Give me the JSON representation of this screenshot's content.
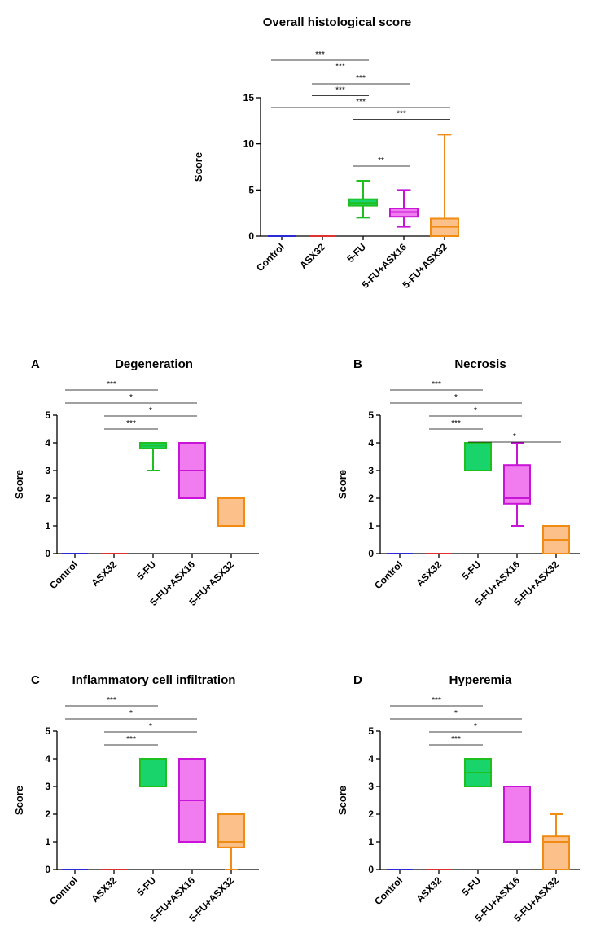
{
  "chart_data": [
    {
      "type": "box",
      "letter": "",
      "title": "Overall histological score",
      "ylabel": "Score",
      "xlabel": "",
      "ylim": [
        0,
        15
      ],
      "yticks": [
        "0",
        "5",
        "10",
        "15"
      ],
      "categories": [
        "Control",
        "ASX32",
        "5-FU",
        "5-FU+ASX16",
        "5-FU+ASX32"
      ],
      "colors": [
        "#2b2bd6",
        "#e03131",
        "#1fbf1f",
        "#c814d6",
        "#f08c14"
      ],
      "fills": [
        "#2b2bd6",
        "#e03131",
        "#19d46a",
        "#f07cf0",
        "#fcc08a"
      ],
      "boxes": [
        {
          "min": 0,
          "q1": 0,
          "median": 0,
          "q3": 0,
          "max": 0
        },
        {
          "min": 0,
          "q1": 0,
          "median": 0,
          "q3": 0,
          "max": 0
        },
        {
          "min": 2,
          "q1": 3.3,
          "median": 3.6,
          "q3": 4,
          "max": 6
        },
        {
          "min": 1,
          "q1": 2.1,
          "median": 2.6,
          "q3": 3,
          "max": 5
        },
        {
          "min": 0,
          "q1": 0,
          "median": 1,
          "q3": 1.9,
          "max": 11
        }
      ],
      "comparisons": [
        {
          "from": 0,
          "to": 2,
          "label": "***"
        },
        {
          "from": 0,
          "to": 3,
          "label": "***"
        },
        {
          "from": 1,
          "to": 3,
          "label": "***"
        },
        {
          "from": 1,
          "to": 2,
          "label": "***"
        },
        {
          "from": 0,
          "to": 4,
          "label": "***"
        },
        {
          "from": 2,
          "to": 4,
          "label": "***"
        },
        {
          "from": 2,
          "to": 3,
          "label": "**"
        }
      ]
    },
    {
      "type": "box",
      "letter": "A",
      "title": "Degeneration",
      "ylabel": "Score",
      "xlabel": "",
      "ylim": [
        0,
        5
      ],
      "yticks": [
        "0",
        "1",
        "2",
        "3",
        "4",
        "5"
      ],
      "categories": [
        "Control",
        "ASX32",
        "5-FU",
        "5-FU+ASX16",
        "5-FU+ASX32"
      ],
      "colors": [
        "#2b2bd6",
        "#e03131",
        "#1fbf1f",
        "#c814d6",
        "#f08c14"
      ],
      "fills": [
        "#2b2bd6",
        "#e03131",
        "#19d46a",
        "#f07cf0",
        "#fcc08a"
      ],
      "boxes": [
        {
          "min": 0,
          "q1": 0,
          "median": 0,
          "q3": 0,
          "max": 0
        },
        {
          "min": 0,
          "q1": 0,
          "median": 0,
          "q3": 0,
          "max": 0
        },
        {
          "min": 3,
          "q1": 3.8,
          "median": 3.9,
          "q3": 4,
          "max": 4
        },
        {
          "min": 2,
          "q1": 2,
          "median": 3,
          "q3": 4,
          "max": 4
        },
        {
          "min": 1,
          "q1": 1,
          "median": 2,
          "q3": 2,
          "max": 2
        }
      ],
      "comparisons": [
        {
          "from": 0,
          "to": 2,
          "label": "***"
        },
        {
          "from": 0,
          "to": 3,
          "label": "*"
        },
        {
          "from": 1,
          "to": 3,
          "label": "*"
        },
        {
          "from": 1,
          "to": 2,
          "label": "***"
        }
      ]
    },
    {
      "type": "box",
      "letter": "B",
      "title": "Necrosis",
      "ylabel": "Score",
      "xlabel": "",
      "ylim": [
        0,
        5
      ],
      "yticks": [
        "0",
        "1",
        "2",
        "3",
        "4",
        "5"
      ],
      "categories": [
        "Control",
        "ASX32",
        "5-FU",
        "5-FU+ASX16",
        "5-FU+ASX32"
      ],
      "colors": [
        "#2b2bd6",
        "#e03131",
        "#1fbf1f",
        "#c814d6",
        "#f08c14"
      ],
      "fills": [
        "#2b2bd6",
        "#e03131",
        "#19d46a",
        "#f07cf0",
        "#fcc08a"
      ],
      "boxes": [
        {
          "min": 0,
          "q1": 0,
          "median": 0,
          "q3": 0,
          "max": 0
        },
        {
          "min": 0,
          "q1": 0,
          "median": 0,
          "q3": 0,
          "max": 0
        },
        {
          "min": 3,
          "q1": 3,
          "median": 4,
          "q3": 4,
          "max": 4
        },
        {
          "min": 1,
          "q1": 1.8,
          "median": 2,
          "q3": 3.2,
          "max": 4
        },
        {
          "min": 0,
          "q1": 0,
          "median": 0.5,
          "q3": 1,
          "max": 1
        }
      ],
      "comparisons": [
        {
          "from": 0,
          "to": 2,
          "label": "***"
        },
        {
          "from": 0,
          "to": 3,
          "label": "*"
        },
        {
          "from": 1,
          "to": 3,
          "label": "*"
        },
        {
          "from": 1,
          "to": 2,
          "label": "***"
        },
        {
          "from": 2,
          "to": 4,
          "label": "*"
        }
      ]
    },
    {
      "type": "box",
      "letter": "C",
      "title": "Inflammatory cell infiltration",
      "ylabel": "Score",
      "xlabel": "",
      "ylim": [
        0,
        5
      ],
      "yticks": [
        "0",
        "1",
        "2",
        "3",
        "4",
        "5"
      ],
      "categories": [
        "Control",
        "ASX32",
        "5-FU",
        "5-FU+ASX16",
        "5-FU+ASX32"
      ],
      "colors": [
        "#2b2bd6",
        "#e03131",
        "#1fbf1f",
        "#c814d6",
        "#f08c14"
      ],
      "fills": [
        "#2b2bd6",
        "#e03131",
        "#19d46a",
        "#f07cf0",
        "#fcc08a"
      ],
      "boxes": [
        {
          "min": 0,
          "q1": 0,
          "median": 0,
          "q3": 0,
          "max": 0
        },
        {
          "min": 0,
          "q1": 0,
          "median": 0,
          "q3": 0,
          "max": 0
        },
        {
          "min": 3,
          "q1": 3,
          "median": 4,
          "q3": 4,
          "max": 4
        },
        {
          "min": 1,
          "q1": 1,
          "median": 2.5,
          "q3": 4,
          "max": 4
        },
        {
          "min": 0,
          "q1": 0.8,
          "median": 1,
          "q3": 2,
          "max": 2
        }
      ],
      "comparisons": [
        {
          "from": 0,
          "to": 2,
          "label": "***"
        },
        {
          "from": 0,
          "to": 3,
          "label": "*"
        },
        {
          "from": 1,
          "to": 3,
          "label": "*"
        },
        {
          "from": 1,
          "to": 2,
          "label": "***"
        }
      ]
    },
    {
      "type": "box",
      "letter": "D",
      "title": "Hyperemia",
      "ylabel": "Score",
      "xlabel": "",
      "ylim": [
        0,
        5
      ],
      "yticks": [
        "0",
        "1",
        "2",
        "3",
        "4",
        "5"
      ],
      "categories": [
        "Control",
        "ASX32",
        "5-FU",
        "5-FU+ASX16",
        "5-FU+ASX32"
      ],
      "colors": [
        "#2b2bd6",
        "#e03131",
        "#1fbf1f",
        "#c814d6",
        "#f08c14"
      ],
      "fills": [
        "#2b2bd6",
        "#e03131",
        "#19d46a",
        "#f07cf0",
        "#fcc08a"
      ],
      "boxes": [
        {
          "min": 0,
          "q1": 0,
          "median": 0,
          "q3": 0,
          "max": 0
        },
        {
          "min": 0,
          "q1": 0,
          "median": 0,
          "q3": 0,
          "max": 0
        },
        {
          "min": 3,
          "q1": 3,
          "median": 3.5,
          "q3": 4,
          "max": 4
        },
        {
          "min": 1,
          "q1": 1,
          "median": 3,
          "q3": 3,
          "max": 3
        },
        {
          "min": 0,
          "q1": 0,
          "median": 1,
          "q3": 1.2,
          "max": 2
        }
      ],
      "comparisons": [
        {
          "from": 0,
          "to": 2,
          "label": "***"
        },
        {
          "from": 0,
          "to": 3,
          "label": "*"
        },
        {
          "from": 1,
          "to": 3,
          "label": "*"
        },
        {
          "from": 1,
          "to": 2,
          "label": "***"
        }
      ]
    }
  ]
}
